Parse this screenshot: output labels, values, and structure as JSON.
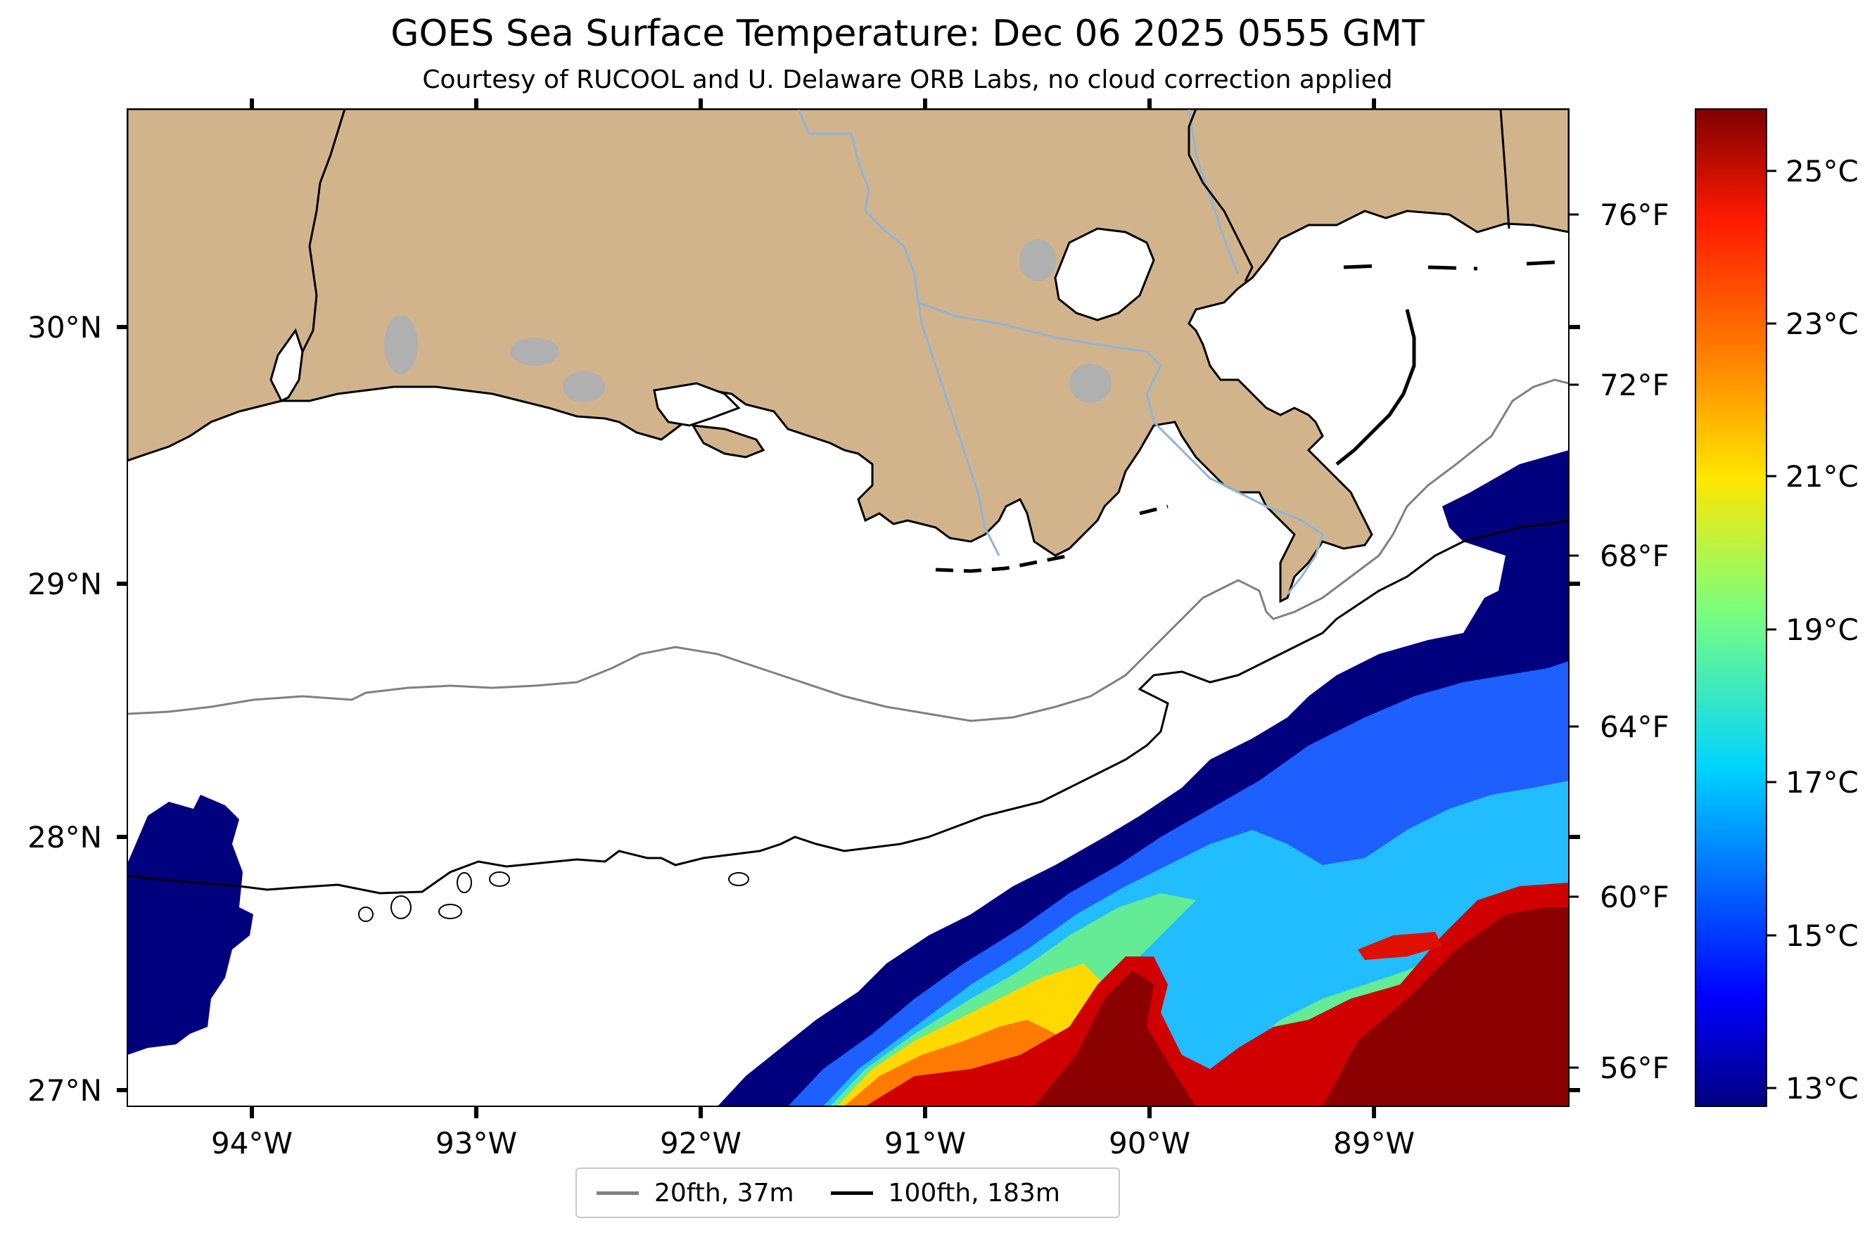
{
  "title": "GOES Sea Surface Temperature: Dec 06 2025 0555 GMT",
  "subtitle": "Courtesy of RUCOOL and U. Delaware ORB Labs, no cloud correction applied",
  "map": {
    "lon_ticks": [
      "94°W",
      "93°W",
      "92°W",
      "91°W",
      "90°W",
      "89°W"
    ],
    "lat_ticks": [
      "30°N",
      "29°N",
      "28°N",
      "27°N"
    ],
    "fahrenheit_ticks": [
      "76°F",
      "72°F",
      "68°F",
      "64°F",
      "60°F",
      "56°F"
    ]
  },
  "colorbar": {
    "range_c": [
      12.8,
      26.0
    ],
    "ticks_c": [
      "25°C",
      "23°C",
      "21°C",
      "19°C",
      "17°C",
      "15°C",
      "13°C"
    ]
  },
  "legend": [
    {
      "label": "20fth, 37m",
      "color": "#808080"
    },
    {
      "label": "100fth, 183m",
      "color": "#000000"
    }
  ],
  "colors": {
    "land": "#D2B48C",
    "water_body": "#ffffff",
    "lake": "#b0b0b0",
    "river": "#8fb4d9",
    "cold": "#00007f",
    "warm": "#8b0000"
  }
}
